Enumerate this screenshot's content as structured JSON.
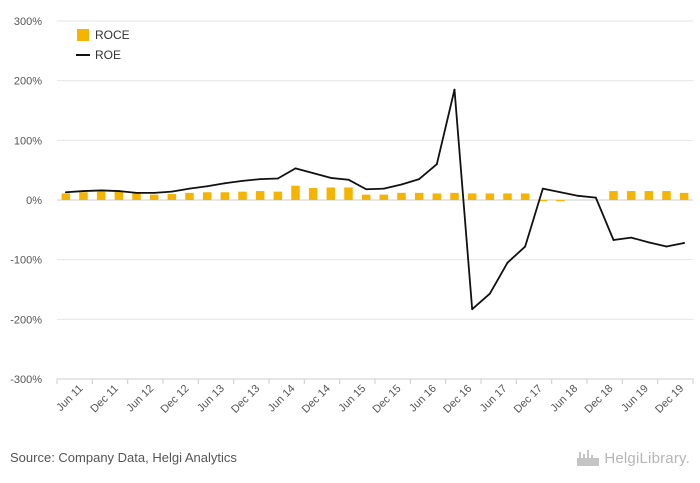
{
  "footer": {
    "source": "Source: Company Data, Helgi Analytics",
    "brand": "HelgiLibrary."
  },
  "colors": {
    "roce": "#f5b400",
    "roe": "#111111",
    "grid": "#e6e6e6",
    "zero_line": "#cccccc"
  },
  "chart_data": {
    "type": "bar",
    "title": "",
    "xlabel": "",
    "ylabel": "",
    "ylim": [
      -300,
      300
    ],
    "yticks": [
      300,
      200,
      100,
      0,
      -100,
      -200,
      -300
    ],
    "ytick_labels": [
      "300%",
      "200%",
      "100%",
      "0%",
      "-100%",
      "-200%",
      "-300%"
    ],
    "grid": true,
    "legend_position": "top-left",
    "categories": [
      "Mar 11",
      "Jun 11",
      "Sep 11",
      "Dec 11",
      "Mar 12",
      "Jun 12",
      "Sep 12",
      "Dec 12",
      "Mar 13",
      "Jun 13",
      "Sep 13",
      "Dec 13",
      "Mar 14",
      "Jun 14",
      "Sep 14",
      "Dec 14",
      "Mar 15",
      "Jun 15",
      "Sep 15",
      "Dec 15",
      "Mar 16",
      "Jun 16",
      "Sep 16",
      "Dec 16",
      "Mar 17",
      "Jun 17",
      "Sep 17",
      "Dec 17",
      "Mar 18",
      "Jun 18",
      "Sep 18",
      "Dec 18",
      "Mar 19",
      "Jun 19",
      "Sep 19",
      "Dec 19"
    ],
    "x_tick_labels": [
      "Jun 11",
      "Dec 11",
      "Jun 12",
      "Dec 12",
      "Jun 13",
      "Dec 13",
      "Jun 14",
      "Dec 14",
      "Jun 15",
      "Dec 15",
      "Jun 16",
      "Dec 16",
      "Jun 17",
      "Dec 17",
      "Jun 18",
      "Dec 18",
      "Jun 19",
      "Dec 19"
    ],
    "series": [
      {
        "name": "ROCE",
        "kind": "bar",
        "values": [
          11,
          13,
          14,
          14,
          11,
          9,
          10,
          12,
          13,
          13,
          14,
          15,
          14,
          24,
          20,
          21,
          21,
          9,
          9,
          12,
          12,
          11,
          12,
          11,
          11,
          11,
          11,
          -2,
          -2,
          0,
          0,
          15,
          15,
          15,
          15,
          12
        ]
      },
      {
        "name": "ROE",
        "kind": "line",
        "values": [
          13,
          15,
          16,
          15,
          12,
          12,
          14,
          19,
          23,
          28,
          32,
          35,
          36,
          53,
          45,
          37,
          34,
          18,
          19,
          26,
          35,
          60,
          185,
          -183,
          -157,
          -105,
          -78,
          19,
          13,
          7,
          4,
          -67,
          -63,
          -71,
          -78,
          -72
        ]
      }
    ]
  }
}
